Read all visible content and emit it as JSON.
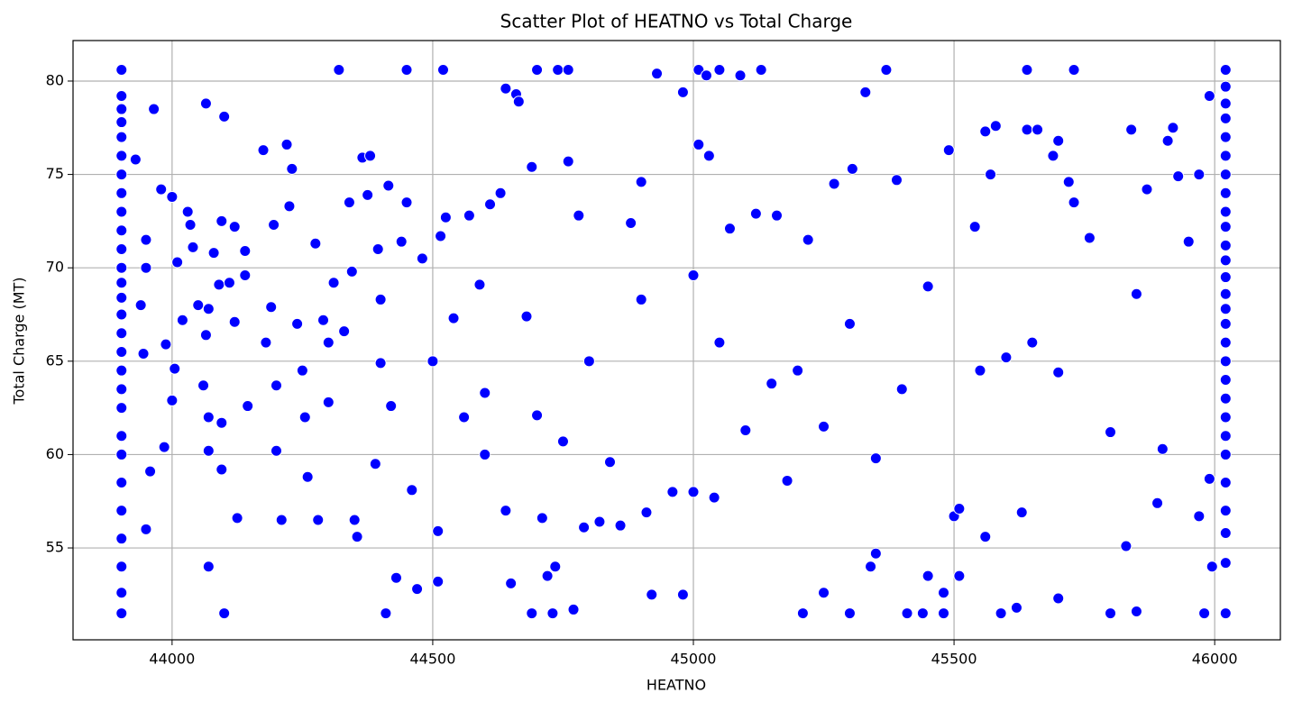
{
  "chart_data": {
    "type": "scatter",
    "title": "Scatter Plot of HEATNO vs Total Charge",
    "x_label": "HEATNO",
    "y_label": "Total Charge (MT)",
    "color": "#0000ff",
    "grid": true,
    "xlim": [
      43810,
      46126
    ],
    "ylim": [
      50.08,
      82.17
    ],
    "xticks": [
      44000,
      44500,
      45000,
      45500,
      46000
    ],
    "yticks": [
      55,
      60,
      65,
      70,
      75,
      80
    ],
    "x": [
      43903,
      43903,
      43903,
      43903,
      43903,
      43903,
      43903,
      43903,
      43903,
      43903,
      43903,
      43903,
      43903,
      43903,
      43903,
      43903,
      43903,
      43903,
      43903,
      43903,
      43903,
      43903,
      43903,
      43903,
      43903,
      43903,
      43903,
      43903,
      46021,
      46021,
      46021,
      46021,
      46021,
      46021,
      46021,
      46021,
      46021,
      46021,
      46021,
      46021,
      46021,
      46021,
      46021,
      46021,
      46021,
      46021,
      46021,
      46021,
      46021,
      46021,
      46021,
      46021,
      46021,
      46021,
      46021,
      46021,
      43965,
      43979,
      43988,
      43985,
      43958,
      43950,
      43950,
      43950,
      43945,
      43940,
      43930,
      44000,
      44010,
      44000,
      44005,
      44020,
      44030,
      44040,
      44035,
      44050,
      44060,
      44065,
      44070,
      44070,
      44070,
      44070,
      44065,
      44080,
      44090,
      44095,
      44100,
      44100,
      44095,
      44095,
      44110,
      44120,
      44120,
      44125,
      44140,
      44140,
      44145,
      44175,
      44180,
      44190,
      44195,
      44200,
      44210,
      44220,
      44225,
      44230,
      44240,
      44250,
      44255,
      44260,
      44275,
      44280,
      44290,
      44300,
      44310,
      44320,
      44330,
      44340,
      44345,
      44350,
      44355,
      44365,
      44380,
      44375,
      44390,
      44395,
      44400,
      44410,
      44415,
      44420,
      44430,
      44440,
      44450,
      44450,
      44460,
      44470,
      44480,
      44510,
      44510,
      44515,
      44520,
      44525,
      44540,
      44560,
      44570,
      44590,
      44600,
      44610,
      44630,
      44640,
      44640,
      44660,
      44665,
      44650,
      44680,
      44690,
      44700,
      44690,
      44710,
      44720,
      44730,
      44740,
      44735,
      44760,
      44760,
      44770,
      44780,
      44790,
      44820,
      44840,
      44860,
      44880,
      44900,
      44910,
      44920,
      44930,
      44960,
      44980,
      44980,
      45000,
      45010,
      45010,
      45025,
      45030,
      45040,
      45050,
      45070,
      45090,
      45120,
      45130,
      45160,
      45180,
      45210,
      45220,
      45250,
      45270,
      45300,
      45305,
      45330,
      45340,
      45350,
      45370,
      45390,
      45410,
      45440,
      45450,
      45480,
      45480,
      45490,
      45500,
      45510,
      45510,
      45540,
      45560,
      45560,
      45570,
      45580,
      45590,
      45620,
      45630,
      45640,
      45640,
      45660,
      45690,
      45700,
      45700,
      45720,
      45730,
      45730,
      45760,
      45800,
      45830,
      45840,
      45850,
      45870,
      45890,
      45910,
      45920,
      45930,
      45950,
      45970,
      45970,
      45980,
      45990,
      45995,
      45990,
      44750,
      44900,
      45100,
      45200,
      45300,
      45400,
      45450,
      45600,
      45650,
      45800,
      45850,
      44200,
      44300,
      44400,
      44500,
      44600,
      44700,
      44800,
      45000,
      45050,
      45150,
      45250,
      45350,
      45550,
      45700,
      45900
    ],
    "values": [
      80.6,
      79.2,
      78.5,
      77.8,
      77.0,
      76.0,
      75.0,
      74.0,
      73.0,
      72.0,
      71.0,
      70.0,
      69.2,
      68.4,
      67.5,
      66.5,
      65.5,
      64.5,
      63.5,
      62.5,
      61.0,
      60.0,
      58.5,
      57.0,
      55.5,
      54.0,
      52.6,
      51.5,
      80.6,
      79.7,
      78.8,
      78.0,
      77.0,
      76.0,
      75.0,
      74.0,
      73.0,
      72.2,
      71.2,
      70.4,
      69.5,
      68.6,
      67.8,
      67.0,
      66.0,
      65.0,
      64.0,
      63.0,
      62.0,
      61.0,
      60.0,
      58.5,
      57.0,
      55.8,
      54.2,
      51.5,
      78.5,
      74.2,
      65.9,
      60.4,
      59.1,
      56.0,
      70.0,
      71.5,
      65.4,
      68.0,
      75.8,
      73.8,
      70.3,
      62.9,
      64.6,
      67.2,
      73.0,
      71.1,
      72.3,
      68.0,
      63.7,
      66.4,
      67.8,
      62.0,
      60.2,
      54.0,
      78.8,
      70.8,
      69.1,
      72.5,
      78.1,
      51.5,
      61.7,
      59.2,
      69.2,
      72.2,
      67.1,
      56.6,
      70.9,
      69.6,
      62.6,
      76.3,
      66.0,
      67.9,
      72.3,
      60.2,
      56.5,
      76.6,
      73.3,
      75.3,
      67.0,
      64.5,
      62.0,
      58.8,
      71.3,
      56.5,
      67.2,
      62.8,
      69.2,
      80.6,
      66.6,
      73.5,
      69.8,
      56.5,
      55.6,
      75.9,
      76.0,
      73.9,
      59.5,
      71.0,
      68.3,
      51.5,
      74.4,
      62.6,
      53.4,
      71.4,
      73.5,
      80.6,
      58.1,
      52.8,
      70.5,
      55.9,
      53.2,
      71.7,
      80.6,
      72.7,
      67.3,
      62.0,
      72.8,
      69.1,
      60.0,
      73.4,
      74.0,
      57.0,
      79.6,
      79.3,
      78.9,
      53.1,
      67.4,
      75.4,
      80.6,
      51.5,
      56.6,
      53.5,
      51.5,
      80.6,
      54.0,
      80.6,
      75.7,
      51.7,
      72.8,
      56.1,
      56.4,
      59.6,
      56.2,
      72.4,
      74.6,
      56.9,
      52.5,
      80.4,
      58.0,
      79.4,
      52.5,
      58.0,
      80.6,
      76.6,
      80.3,
      76.0,
      57.7,
      80.6,
      72.1,
      80.3,
      72.9,
      80.6,
      72.8,
      58.6,
      51.5,
      71.5,
      52.6,
      74.5,
      51.5,
      75.3,
      79.4,
      54.0,
      54.7,
      80.6,
      74.7,
      51.5,
      51.5,
      53.5,
      51.5,
      52.6,
      76.3,
      56.7,
      57.1,
      53.5,
      72.2,
      55.6,
      77.3,
      75.0,
      77.6,
      51.5,
      51.8,
      56.9,
      80.6,
      77.4,
      77.4,
      76.0,
      76.8,
      52.3,
      74.6,
      80.6,
      73.5,
      71.6,
      51.5,
      55.1,
      77.4,
      51.6,
      74.2,
      57.4,
      76.8,
      77.5,
      74.9,
      71.4,
      75.0,
      56.7,
      51.5,
      79.2,
      54.0,
      58.7,
      60.7,
      68.3,
      61.3,
      64.5,
      67.0,
      63.5,
      69.0,
      65.2,
      66.0,
      61.2,
      68.6,
      63.7,
      66.0,
      64.9,
      65.0,
      63.3,
      62.1,
      65.0,
      69.6,
      66.0,
      63.8,
      61.5,
      59.8,
      64.5,
      64.4,
      60.3
    ]
  }
}
